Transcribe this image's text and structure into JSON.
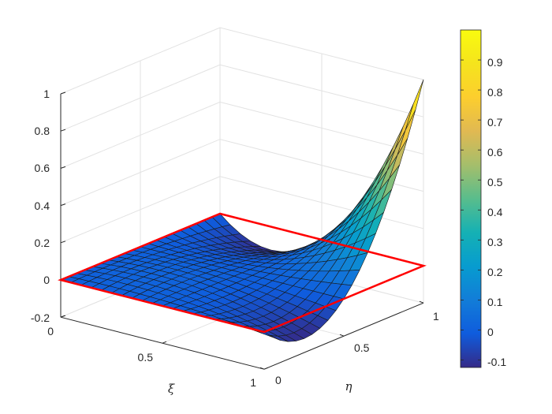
{
  "chart_data": {
    "type": "surface",
    "title": "",
    "xlabel": "ξ",
    "ylabel": "η",
    "zlabel": "",
    "xlim": [
      0,
      1
    ],
    "ylim": [
      0,
      1
    ],
    "zlim": [
      -0.2,
      1
    ],
    "x_ticks": [
      "0",
      "0.5",
      "1"
    ],
    "y_ticks": [
      "0",
      "0.5",
      "1"
    ],
    "z_ticks": [
      "-0.2",
      "0",
      "0.2",
      "0.4",
      "0.6",
      "0.8",
      "1"
    ],
    "grid": true,
    "colormap": "parula",
    "surface": {
      "grid_size": [
        21,
        21
      ],
      "peak": {
        "x": 1,
        "y": 1,
        "z": 1
      },
      "min_value": -0.125,
      "max_value": 1
    },
    "reference_square": {
      "z": 0,
      "color": "#ff0000"
    },
    "colorbar": {
      "range": [
        -0.125,
        1
      ],
      "ticks": [
        "-0.1",
        "0",
        "0.1",
        "0.2",
        "0.3",
        "0.4",
        "0.5",
        "0.6",
        "0.7",
        "0.8",
        "0.9"
      ]
    }
  }
}
